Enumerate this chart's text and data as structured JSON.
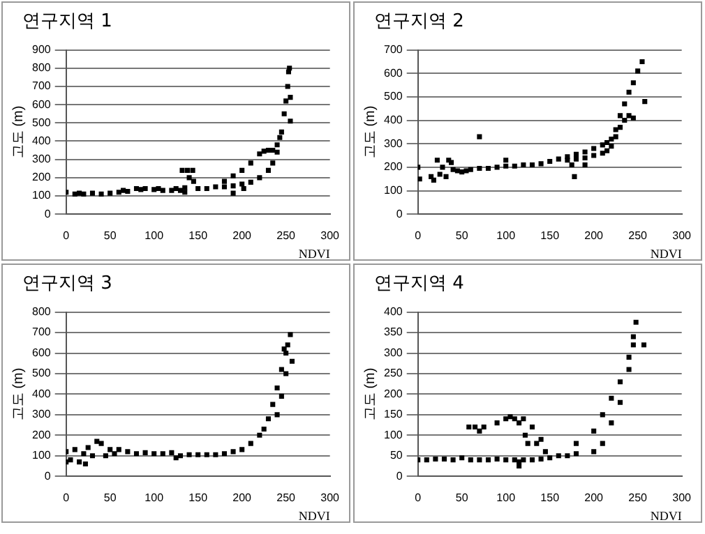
{
  "chart_data": [
    {
      "type": "scatter",
      "title": "연구지역 1",
      "xlabel": "NDVI",
      "ylabel": "고도 (m)",
      "xlim": [
        0,
        300
      ],
      "xticks": [
        0,
        50,
        100,
        150,
        200,
        250,
        300
      ],
      "ylim": [
        0,
        900
      ],
      "yticks": [
        0,
        100,
        200,
        300,
        400,
        500,
        600,
        700,
        800,
        900
      ],
      "grid": "y",
      "marker": "square",
      "series": [
        {
          "color": "#000000",
          "x": [
            0,
            10,
            15,
            20,
            30,
            40,
            50,
            60,
            65,
            70,
            80,
            85,
            90,
            100,
            105,
            110,
            120,
            125,
            130,
            135,
            132,
            138,
            144,
            145,
            150,
            160,
            170,
            180,
            190,
            200,
            210,
            220,
            225,
            230,
            235,
            240,
            245,
            248,
            250,
            252,
            253,
            254,
            180,
            190,
            200,
            210,
            220,
            230,
            235,
            240,
            243,
            190,
            202,
            255,
            255,
            140,
            135
          ],
          "values": [
            120,
            110,
            115,
            110,
            115,
            110,
            115,
            120,
            130,
            125,
            140,
            135,
            140,
            135,
            140,
            130,
            130,
            140,
            130,
            145,
            240,
            240,
            240,
            180,
            140,
            140,
            150,
            180,
            210,
            240,
            280,
            330,
            345,
            350,
            350,
            380,
            450,
            550,
            620,
            700,
            780,
            800,
            150,
            155,
            165,
            175,
            200,
            240,
            280,
            340,
            420,
            115,
            140,
            510,
            640,
            200,
            120
          ]
        }
      ]
    },
    {
      "type": "scatter",
      "title": "연구지역 2",
      "xlabel": "NDVI",
      "ylabel": "고도 (m)",
      "xlim": [
        0,
        300
      ],
      "xticks": [
        0,
        50,
        100,
        150,
        200,
        250,
        300
      ],
      "ylim": [
        0,
        700
      ],
      "yticks": [
        0,
        100,
        200,
        300,
        400,
        500,
        600,
        700
      ],
      "grid": "y",
      "marker": "square",
      "series": [
        {
          "color": "#000000",
          "x": [
            0,
            2,
            15,
            18,
            22,
            25,
            28,
            32,
            35,
            38,
            40,
            45,
            50,
            55,
            60,
            70,
            80,
            90,
            100,
            110,
            120,
            130,
            140,
            150,
            160,
            170,
            180,
            190,
            200,
            210,
            215,
            220,
            225,
            230,
            235,
            240,
            245,
            250,
            255,
            170,
            180,
            190,
            200,
            210,
            215,
            220,
            225,
            230,
            235,
            240,
            70,
            100,
            178,
            175,
            190,
            258,
            245
          ],
          "values": [
            200,
            150,
            160,
            145,
            230,
            170,
            200,
            160,
            230,
            220,
            190,
            185,
            180,
            185,
            190,
            195,
            195,
            200,
            205,
            205,
            210,
            210,
            215,
            225,
            235,
            245,
            255,
            265,
            280,
            295,
            305,
            320,
            360,
            420,
            470,
            520,
            560,
            610,
            650,
            230,
            235,
            240,
            250,
            260,
            270,
            290,
            330,
            370,
            400,
            420,
            330,
            230,
            160,
            210,
            210,
            480,
            410
          ]
        }
      ]
    },
    {
      "type": "scatter",
      "title": "연구지역 3",
      "xlabel": "NDVI",
      "ylabel": "고도 (m)",
      "xlim": [
        0,
        300
      ],
      "xticks": [
        0,
        50,
        100,
        150,
        200,
        250,
        300
      ],
      "ylim": [
        0,
        800
      ],
      "yticks": [
        0,
        100,
        200,
        300,
        400,
        500,
        600,
        700,
        800
      ],
      "grid": "y",
      "marker": "square",
      "series": [
        {
          "color": "#000000",
          "x": [
            0,
            5,
            10,
            15,
            20,
            25,
            30,
            35,
            40,
            45,
            50,
            55,
            60,
            70,
            80,
            90,
            100,
            110,
            120,
            130,
            140,
            150,
            160,
            170,
            180,
            190,
            200,
            210,
            220,
            225,
            230,
            235,
            240,
            245,
            248,
            250,
            252,
            255,
            257,
            240,
            245,
            250,
            0,
            22,
            125
          ],
          "values": [
            120,
            80,
            130,
            70,
            110,
            140,
            100,
            170,
            160,
            100,
            130,
            110,
            130,
            120,
            110,
            115,
            110,
            110,
            115,
            100,
            105,
            105,
            105,
            105,
            110,
            120,
            130,
            160,
            200,
            230,
            280,
            350,
            430,
            520,
            620,
            600,
            640,
            690,
            560,
            300,
            390,
            500,
            70,
            60,
            90
          ]
        }
      ]
    },
    {
      "type": "scatter",
      "title": "연구지역 4",
      "xlabel": "NDVI",
      "ylabel": "고도 (m)",
      "xlim": [
        0,
        300
      ],
      "xticks": [
        0,
        50,
        100,
        150,
        200,
        250,
        300
      ],
      "ylim": [
        0,
        400
      ],
      "yticks": [
        0,
        50,
        100,
        150,
        200,
        250,
        300,
        350,
        400
      ],
      "grid": "y",
      "marker": "square",
      "series": [
        {
          "color": "#000000",
          "x": [
            0,
            10,
            20,
            30,
            40,
            50,
            60,
            70,
            80,
            90,
            100,
            110,
            115,
            120,
            130,
            140,
            150,
            160,
            170,
            58,
            65,
            70,
            75,
            90,
            100,
            105,
            110,
            115,
            120,
            122,
            125,
            130,
            135,
            140,
            145,
            180,
            200,
            210,
            220,
            230,
            240,
            245,
            248,
            180,
            200,
            210,
            220,
            230,
            240,
            245,
            257,
            115
          ],
          "values": [
            40,
            40,
            42,
            42,
            40,
            45,
            40,
            40,
            40,
            42,
            40,
            40,
            35,
            40,
            40,
            42,
            45,
            50,
            50,
            120,
            120,
            110,
            120,
            130,
            140,
            145,
            140,
            130,
            140,
            100,
            80,
            120,
            80,
            90,
            60,
            80,
            110,
            150,
            190,
            230,
            290,
            340,
            375,
            55,
            60,
            80,
            130,
            180,
            260,
            320,
            320,
            25
          ]
        }
      ]
    }
  ]
}
